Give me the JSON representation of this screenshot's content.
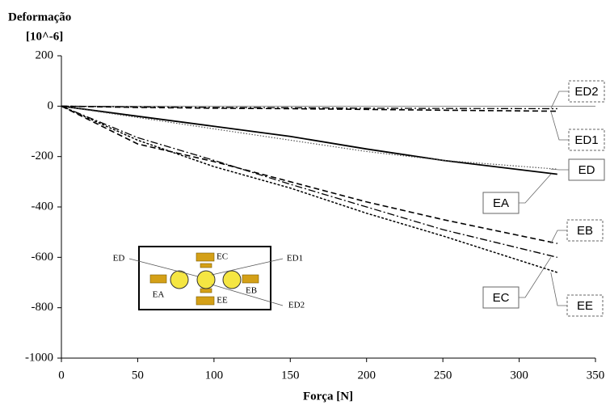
{
  "chart_data": {
    "type": "line",
    "y_title": [
      "Deformação",
      "[10^-6]"
    ],
    "x_title": "Força [N]",
    "xlim": [
      0,
      350
    ],
    "xticks": [
      0,
      50,
      100,
      150,
      200,
      250,
      300,
      350
    ],
    "ylim": [
      -1000,
      200
    ],
    "yticks": [
      200,
      0,
      -200,
      -400,
      -600,
      -800,
      -1000
    ],
    "x": [
      0,
      50,
      100,
      150,
      200,
      250,
      325
    ],
    "series": [
      {
        "name": "EA",
        "color": "#000000",
        "style": "solid",
        "values": [
          0,
          -40,
          -80,
          -120,
          -170,
          -215,
          -270
        ]
      },
      {
        "name": "ED",
        "color": "#555555",
        "style": "dotted",
        "values": [
          0,
          -45,
          -90,
          -135,
          -180,
          -215,
          -250
        ]
      },
      {
        "name": "EB",
        "color": "#000000",
        "style": "dashed",
        "values": [
          0,
          -150,
          -220,
          -300,
          -380,
          -450,
          -545
        ]
      },
      {
        "name": "EC",
        "color": "#000000",
        "style": "dashdot",
        "values": [
          0,
          -125,
          -215,
          -310,
          -400,
          -490,
          -600
        ]
      },
      {
        "name": "EE",
        "color": "#000000",
        "style": "shortdash",
        "values": [
          0,
          -135,
          -240,
          -325,
          -425,
          -515,
          -660
        ]
      },
      {
        "name": "ED1",
        "color": "#000000",
        "style": "dashed",
        "values": [
          0,
          -5,
          -8,
          -10,
          -13,
          -16,
          -20
        ]
      },
      {
        "name": "ED2",
        "color": "#000000",
        "style": "dashdot",
        "values": [
          0,
          -3,
          -5,
          -6,
          -8,
          -9,
          -10
        ]
      }
    ],
    "inset_labels": [
      "ED",
      "EC",
      "ED1",
      "EA",
      "EB",
      "EE",
      "ED2"
    ]
  }
}
